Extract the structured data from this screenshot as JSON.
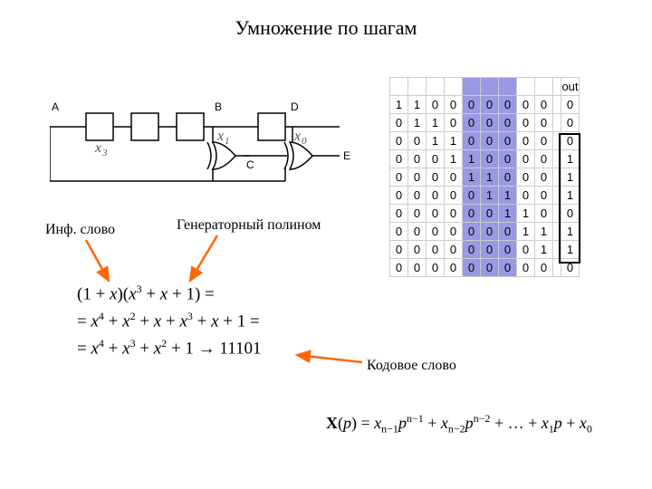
{
  "title": "Умножение по шагам",
  "circuit": {
    "ports": {
      "A": "A",
      "B": "B",
      "C": "C",
      "D": "D",
      "E": "E"
    },
    "regs": {
      "x3": "x₃",
      "x1": "x₁",
      "x0": "x₀"
    },
    "line_color": "#000000",
    "box_fill": "#ffffff"
  },
  "callouts": {
    "info_word": "Инф. слово",
    "gen_poly": "Генераторный полином",
    "code_word": "Кодовое слово",
    "arrow_color": "#ff6600"
  },
  "math": {
    "line1": "(1 + x)(x³ + x + 1) =",
    "line2": "= x⁴ + x² + x + x³ + x + 1 =",
    "line3": "= x⁴ + x³ + x² + 1 → 11101"
  },
  "formula": "X(p) = xₙ₋₁pⁿ⁻¹ + xₙ₋₂pⁿ⁻² + … + x₁p + x₀",
  "table": {
    "out_header": "out",
    "highlight_cols": [
      4,
      5,
      6
    ],
    "highlight_color": "#9999e6",
    "rows": [
      {
        "bits": [
          1,
          1,
          0,
          0,
          0,
          0,
          0,
          0,
          0
        ],
        "out": 0
      },
      {
        "bits": [
          0,
          1,
          1,
          0,
          0,
          0,
          0,
          0,
          0
        ],
        "out": 0
      },
      {
        "bits": [
          0,
          0,
          1,
          1,
          0,
          0,
          0,
          0,
          0
        ],
        "out": 0
      },
      {
        "bits": [
          0,
          0,
          0,
          1,
          1,
          0,
          0,
          0,
          0
        ],
        "out": 1
      },
      {
        "bits": [
          0,
          0,
          0,
          0,
          1,
          1,
          0,
          0,
          0
        ],
        "out": 1
      },
      {
        "bits": [
          0,
          0,
          0,
          0,
          0,
          1,
          1,
          0,
          0
        ],
        "out": 1
      },
      {
        "bits": [
          0,
          0,
          0,
          0,
          0,
          0,
          1,
          1,
          0
        ],
        "out": 0
      },
      {
        "bits": [
          0,
          0,
          0,
          0,
          0,
          0,
          0,
          1,
          1
        ],
        "out": 1
      },
      {
        "bits": [
          0,
          0,
          0,
          0,
          0,
          0,
          0,
          0,
          1
        ],
        "out": 1
      },
      {
        "bits": [
          0,
          0,
          0,
          0,
          0,
          0,
          0,
          0,
          0
        ],
        "out": 0
      }
    ],
    "out_box_from_row": 2,
    "out_box_to_row": 8
  }
}
